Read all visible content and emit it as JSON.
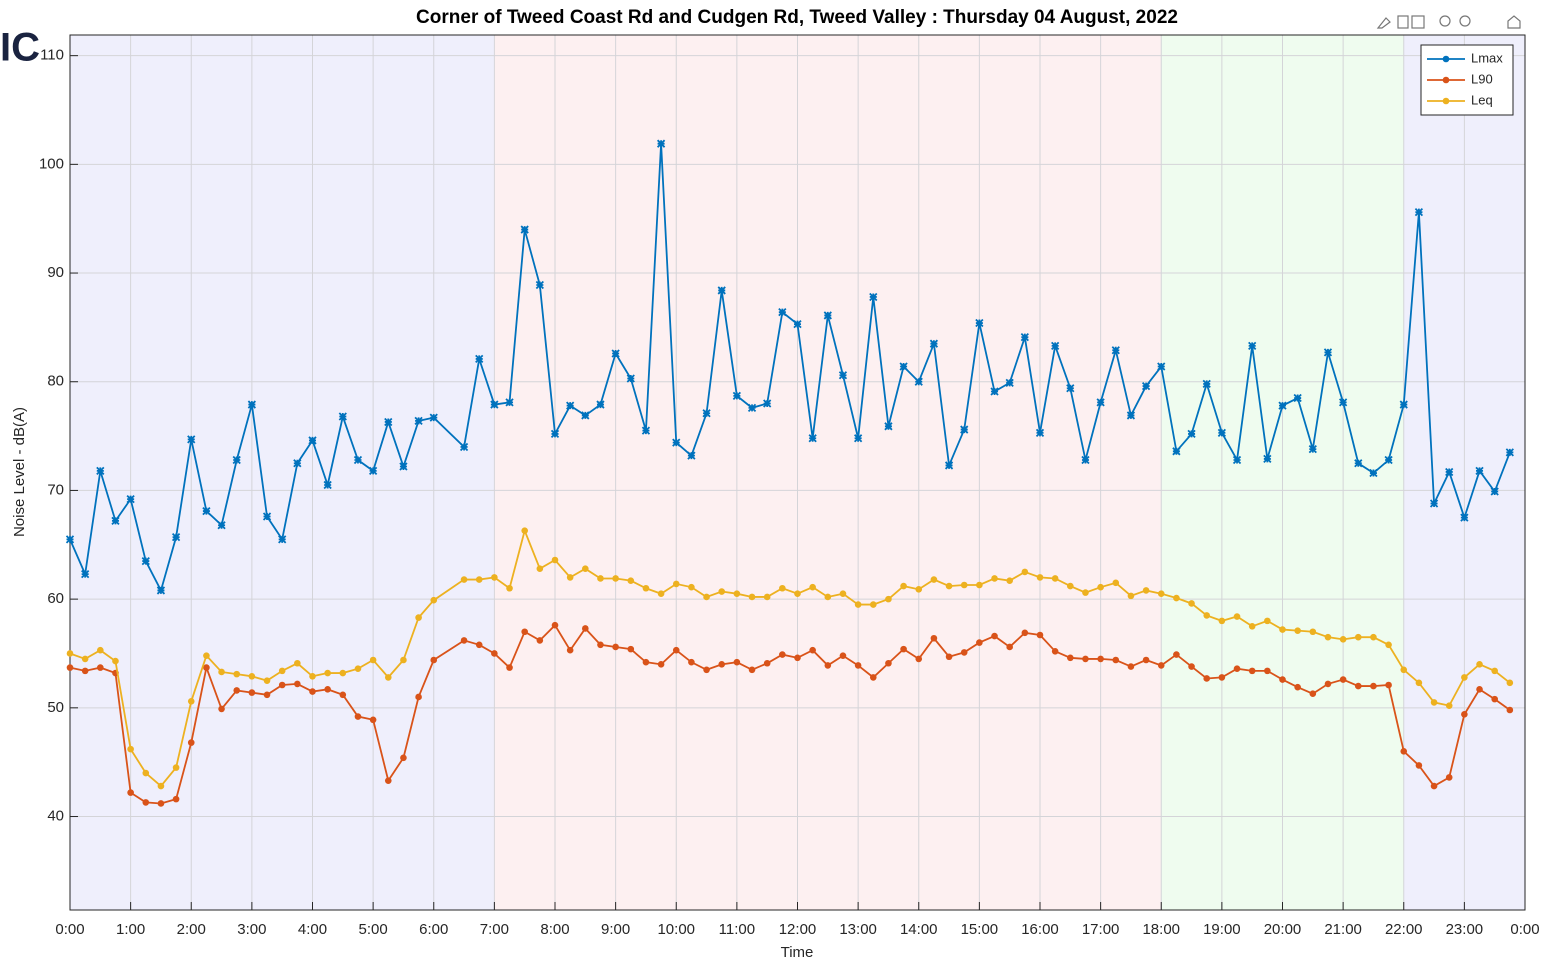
{
  "logo": "IC",
  "chart_data": {
    "type": "line",
    "title": "Corner of Tweed Coast Rd and Cudgen Rd, Tweed Valley :  Thursday 04 August, 2022",
    "xlabel": "Time",
    "ylabel": "Noise Level - dB(A)",
    "x": [
      0,
      0.25,
      0.5,
      0.75,
      1,
      1.25,
      1.5,
      1.75,
      2,
      2.25,
      2.5,
      2.75,
      3,
      3.25,
      3.5,
      3.75,
      4,
      4.25,
      4.5,
      4.75,
      5,
      5.25,
      5.5,
      5.75,
      6,
      6.5,
      6.75,
      7,
      7.25,
      7.5,
      7.75,
      8,
      8.25,
      8.5,
      8.75,
      9,
      9.25,
      9.5,
      9.75,
      10,
      10.25,
      10.5,
      10.75,
      11,
      11.25,
      11.5,
      11.75,
      12,
      12.25,
      12.5,
      12.75,
      13,
      13.25,
      13.5,
      13.75,
      14,
      14.25,
      14.5,
      14.75,
      15,
      15.25,
      15.5,
      15.75,
      16,
      16.25,
      16.5,
      16.75,
      17,
      17.25,
      17.5,
      17.75,
      18,
      18.25,
      18.5,
      18.75,
      19,
      19.25,
      19.5,
      19.75,
      20,
      20.25,
      20.5,
      20.75,
      21,
      21.25,
      21.5,
      21.75,
      22,
      22.25,
      22.5,
      22.75,
      23,
      23.25,
      23.5,
      23.75
    ],
    "series": [
      {
        "name": "Lmax",
        "color": "#0072bd",
        "marker": "star",
        "values": [
          65.5,
          62.3,
          71.8,
          67.2,
          69.2,
          63.5,
          60.8,
          65.7,
          74.7,
          68.1,
          66.8,
          72.8,
          77.9,
          67.6,
          65.5,
          72.5,
          74.6,
          70.5,
          76.8,
          72.8,
          71.8,
          76.3,
          72.2,
          76.4,
          76.7,
          74.0,
          82.1,
          77.9,
          78.1,
          94.0,
          88.9,
          75.2,
          77.8,
          76.9,
          77.9,
          82.6,
          80.3,
          75.5,
          101.9,
          74.4,
          73.2,
          77.1,
          88.4,
          78.7,
          77.6,
          78.0,
          86.4,
          85.3,
          74.8,
          86.1,
          80.6,
          74.8,
          87.8,
          75.9,
          81.4,
          80.0,
          83.5,
          72.3,
          75.6,
          85.4,
          79.1,
          79.9,
          84.1,
          75.3,
          83.3,
          79.4,
          72.8,
          78.1,
          82.9,
          76.9,
          79.6,
          81.4,
          73.6,
          75.2,
          79.8,
          75.3,
          72.8,
          83.3,
          72.9,
          77.8,
          78.5,
          73.8,
          82.7,
          78.1,
          72.5,
          71.6,
          72.8,
          77.9,
          95.6,
          68.8,
          71.7,
          67.5,
          71.8,
          69.9,
          73.5
        ]
      },
      {
        "name": "L90",
        "color": "#d95319",
        "marker": "dot",
        "values": [
          53.7,
          53.4,
          53.7,
          53.2,
          42.2,
          41.3,
          41.2,
          41.6,
          46.8,
          53.7,
          49.9,
          51.6,
          51.4,
          51.2,
          52.1,
          52.2,
          51.5,
          51.7,
          51.2,
          49.2,
          48.9,
          43.3,
          45.4,
          51.0,
          54.4,
          56.2,
          55.8,
          55.0,
          53.7,
          57.0,
          56.2,
          57.6,
          55.3,
          57.3,
          55.8,
          55.6,
          55.4,
          54.2,
          54.0,
          55.3,
          54.2,
          53.5,
          54.0,
          54.2,
          53.5,
          54.1,
          54.9,
          54.6,
          55.3,
          53.9,
          54.8,
          53.9,
          52.8,
          54.1,
          55.4,
          54.5,
          56.4,
          54.7,
          55.1,
          56.0,
          56.6,
          55.6,
          56.9,
          56.7,
          55.2,
          54.6,
          54.5,
          54.5,
          54.4,
          53.8,
          54.4,
          53.9,
          54.9,
          53.8,
          52.7,
          52.8,
          53.6,
          53.4,
          53.4,
          52.6,
          51.9,
          51.3,
          52.2,
          52.6,
          52.0,
          52.0,
          52.1,
          46.0,
          44.7,
          42.8,
          43.6,
          49.4,
          51.7,
          50.8,
          49.8
        ]
      },
      {
        "name": "Leq",
        "color": "#edb120",
        "marker": "dot",
        "values": [
          55.0,
          54.5,
          55.3,
          54.3,
          46.2,
          44.0,
          42.8,
          44.5,
          50.6,
          54.8,
          53.3,
          53.1,
          52.9,
          52.5,
          53.4,
          54.1,
          52.9,
          53.2,
          53.2,
          53.6,
          54.4,
          52.8,
          54.4,
          58.3,
          59.9,
          61.8,
          61.8,
          62.0,
          61.0,
          66.3,
          62.8,
          63.6,
          62.0,
          62.8,
          61.9,
          61.9,
          61.7,
          61.0,
          60.5,
          61.4,
          61.1,
          60.2,
          60.7,
          60.5,
          60.2,
          60.2,
          61.0,
          60.5,
          61.1,
          60.2,
          60.5,
          59.5,
          59.5,
          60.0,
          61.2,
          60.9,
          61.8,
          61.2,
          61.3,
          61.3,
          61.9,
          61.7,
          62.5,
          62.0,
          61.9,
          61.2,
          60.6,
          61.1,
          61.5,
          60.3,
          60.8,
          60.5,
          60.1,
          59.6,
          58.5,
          58.0,
          58.4,
          57.5,
          58.0,
          57.2,
          57.1,
          57.0,
          56.5,
          56.3,
          56.5,
          56.5,
          55.8,
          53.5,
          52.3,
          50.5,
          50.2,
          52.8,
          54.0,
          53.4,
          52.3
        ]
      }
    ],
    "bands": [
      {
        "from": 0,
        "to": 7,
        "color": "#efeffc"
      },
      {
        "from": 7,
        "to": 18,
        "color": "#fdf0f1"
      },
      {
        "from": 18,
        "to": 22,
        "color": "#effcef"
      },
      {
        "from": 22,
        "to": 24,
        "color": "#efeffc"
      }
    ],
    "xlim": [
      0,
      24
    ],
    "xticks": [
      {
        "value": 0,
        "label": "0:00"
      },
      {
        "value": 1,
        "label": "1:00"
      },
      {
        "value": 2,
        "label": "2:00"
      },
      {
        "value": 3,
        "label": "3:00"
      },
      {
        "value": 4,
        "label": "4:00"
      },
      {
        "value": 5,
        "label": "5:00"
      },
      {
        "value": 6,
        "label": "6:00"
      },
      {
        "value": 7,
        "label": "7:00"
      },
      {
        "value": 8,
        "label": "8:00"
      },
      {
        "value": 9,
        "label": "9:00"
      },
      {
        "value": 10,
        "label": "10:00"
      },
      {
        "value": 11,
        "label": "11:00"
      },
      {
        "value": 12,
        "label": "12:00"
      },
      {
        "value": 13,
        "label": "13:00"
      },
      {
        "value": 14,
        "label": "14:00"
      },
      {
        "value": 15,
        "label": "15:00"
      },
      {
        "value": 16,
        "label": "16:00"
      },
      {
        "value": 17,
        "label": "17:00"
      },
      {
        "value": 18,
        "label": "18:00"
      },
      {
        "value": 19,
        "label": "19:00"
      },
      {
        "value": 20,
        "label": "20:00"
      },
      {
        "value": 21,
        "label": "21:00"
      },
      {
        "value": 22,
        "label": "22:00"
      },
      {
        "value": 23,
        "label": "23:00"
      },
      {
        "value": 24,
        "label": "0:00"
      }
    ],
    "ylim": [
      31.4,
      111.9
    ],
    "yticks": [
      40,
      50,
      60,
      70,
      80,
      90,
      100,
      110
    ],
    "grid": true,
    "legend": "northeast"
  }
}
